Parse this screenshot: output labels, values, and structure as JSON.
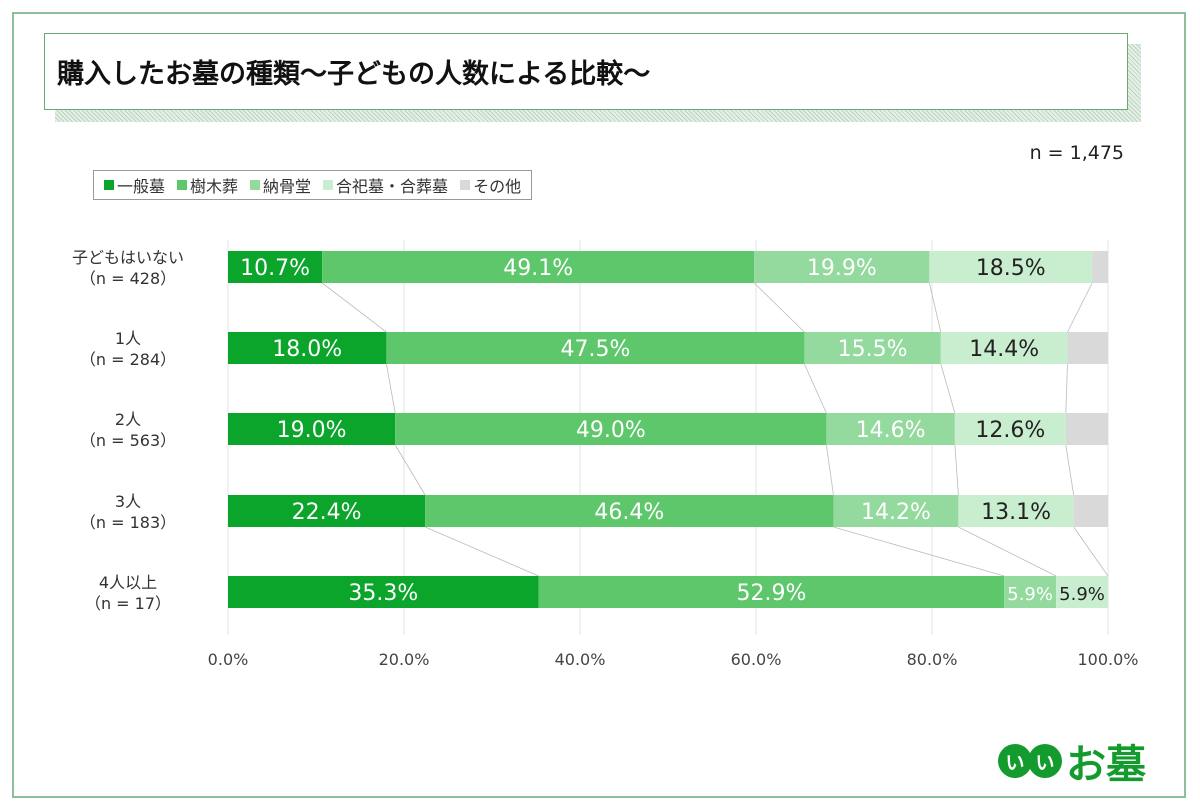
{
  "title": "購入したお墓の種類～子どもの人数による比較～",
  "n_total": "n = 1,475",
  "logo": "いいお墓",
  "chart_data": {
    "type": "bar",
    "orientation": "horizontal-stacked-100",
    "title": "購入したお墓の種類～子どもの人数による比較～",
    "categories": [
      [
        "子どもはいない",
        "（n = 428）"
      ],
      [
        "1人",
        "（n = 284）"
      ],
      [
        "2人",
        "（n = 563）"
      ],
      [
        "3人",
        "（n = 183）"
      ],
      [
        "4人以上",
        "（n = 17）"
      ]
    ],
    "series": [
      {
        "name": "一般墓",
        "color": "#0ba52c",
        "label_color": "#ffffff",
        "values": [
          10.7,
          18.0,
          19.0,
          22.4,
          35.3
        ]
      },
      {
        "name": "樹木葬",
        "color": "#5ec76c",
        "label_color": "#ffffff",
        "values": [
          49.1,
          47.5,
          49.0,
          46.4,
          52.9
        ]
      },
      {
        "name": "納骨堂",
        "color": "#94d99d",
        "label_color": "#ffffff",
        "values": [
          19.9,
          15.5,
          14.6,
          14.2,
          5.9
        ]
      },
      {
        "name": "合祀墓・合葬墓",
        "color": "#c9eecf",
        "label_color": "#222222",
        "values": [
          18.5,
          14.4,
          12.6,
          13.1,
          5.9
        ]
      },
      {
        "name": "その他",
        "color": "#d9d9d9",
        "label_color": null,
        "values": [
          1.8,
          4.6,
          4.8,
          3.9,
          0
        ]
      }
    ],
    "xlim": [
      0,
      100
    ],
    "xticks": [
      "0.0%",
      "20.0%",
      "40.0%",
      "60.0%",
      "80.0%",
      "100.0%"
    ],
    "grid": true,
    "legend": "top-left",
    "series_lines": true
  }
}
